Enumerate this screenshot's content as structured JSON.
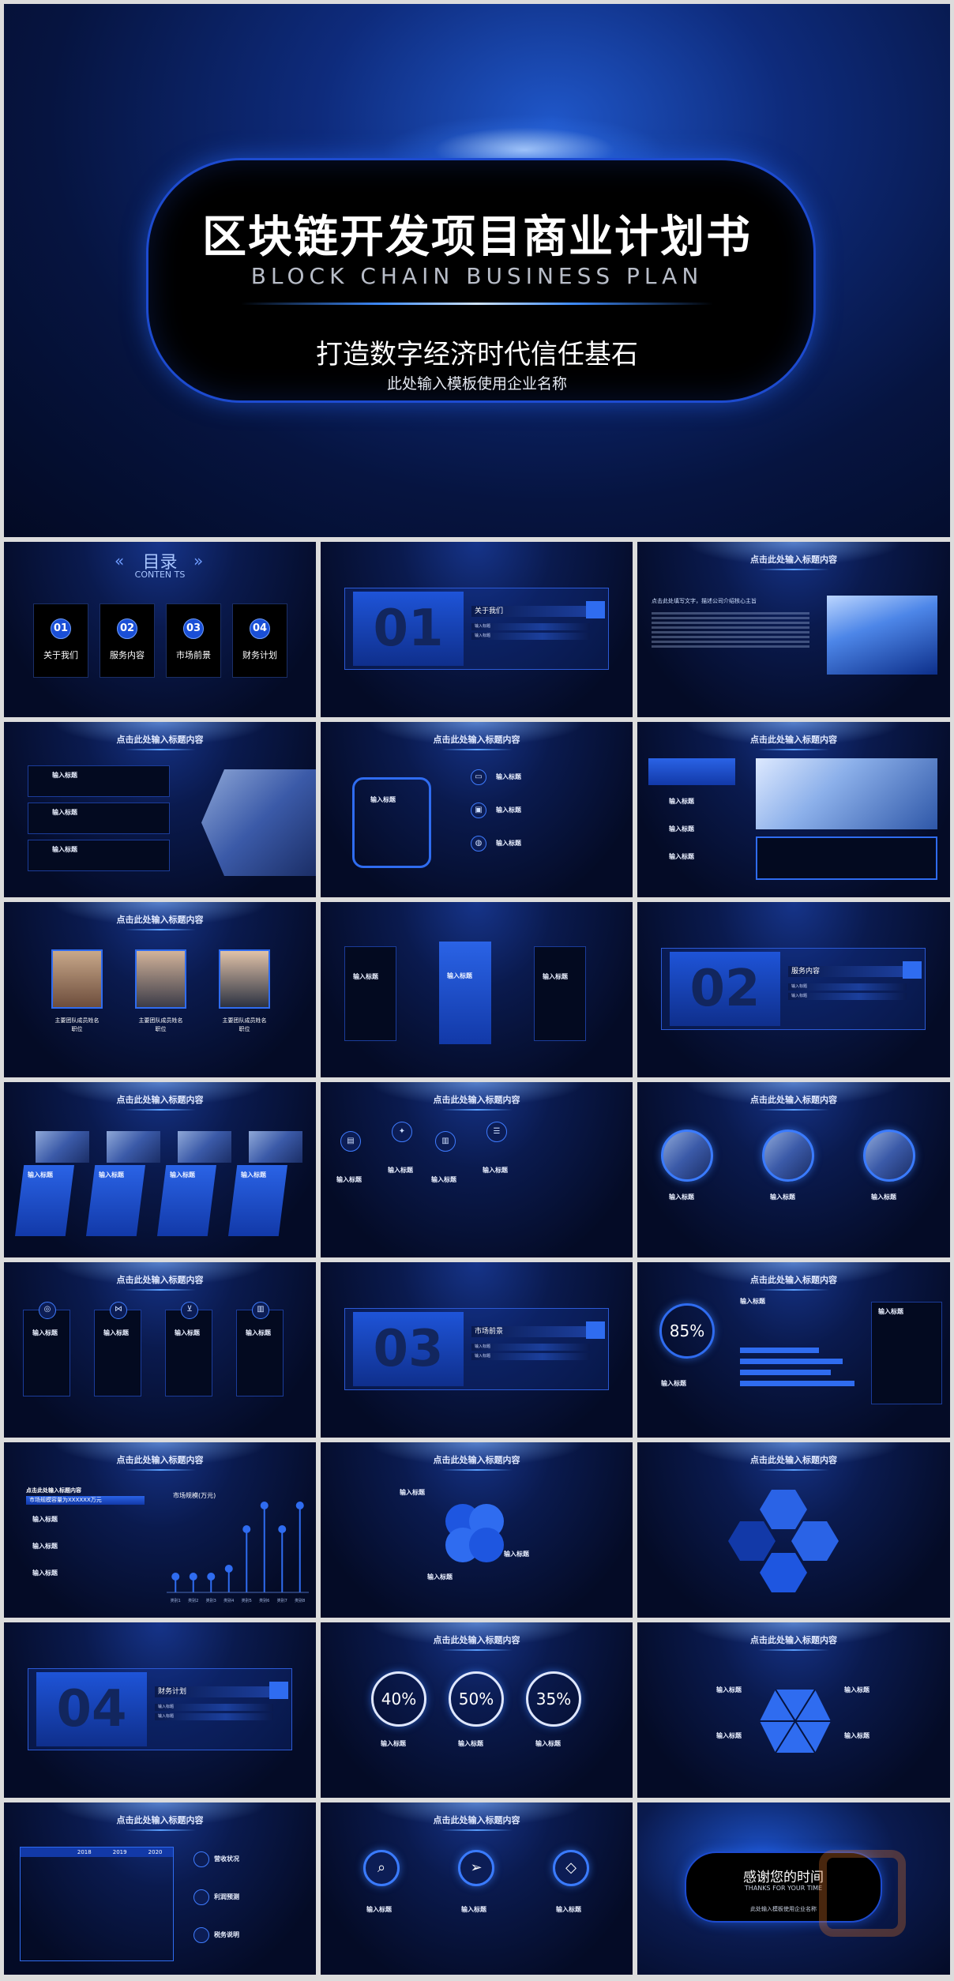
{
  "hero": {
    "title": "区块链开发项目商业计划书",
    "subtitle_en": "BLOCK CHAIN BUSINESS PLAN",
    "tagline": "打造数字经济时代信任基石",
    "company": "此处输入模板使用企业名称"
  },
  "contents": {
    "title": "目录",
    "title_en": "CONTEN TS",
    "items": [
      {
        "num": "01",
        "label": "关于我们"
      },
      {
        "num": "02",
        "label": "服务内容"
      },
      {
        "num": "03",
        "label": "市场前景"
      },
      {
        "num": "04",
        "label": "财务计划"
      }
    ]
  },
  "common": {
    "slide_title": "点击此处输入标题内容",
    "input_title": "输入标题",
    "input_small": "输入标题",
    "body_text": "点击此处输入文字点击此处输入文字点击此处输入文字"
  },
  "sections": [
    {
      "num": "01",
      "label": "关于我们"
    },
    {
      "num": "02",
      "label": "服务内容"
    },
    {
      "num": "03",
      "label": "市场前景"
    },
    {
      "num": "04",
      "label": "财务计划"
    }
  ],
  "section_rows": [
    "输入标题",
    "输入标题",
    "输入标题",
    "输入标题"
  ],
  "about_slide": {
    "heading": "点击此处填写文字，描述公司介绍核心主旨"
  },
  "team": {
    "members": [
      {
        "name": "主要团队成员姓名",
        "role": "职位"
      },
      {
        "name": "主要团队成员姓名",
        "role": "职位"
      },
      {
        "name": "主要团队成员姓名",
        "role": "职位"
      }
    ]
  },
  "percent_slide": {
    "value": "85%"
  },
  "market_slide": {
    "subtitle": "点击此处输入标题内容",
    "highlight": "市场规模容量为XXXXXX万元",
    "chart_title": "市场规模(万元)",
    "categories": [
      "类别1",
      "类别2",
      "类别3",
      "类别4",
      "类别5",
      "类别6",
      "类别7",
      "类别8"
    ]
  },
  "rings": {
    "values": [
      "40%",
      "50%",
      "35%"
    ]
  },
  "table_slide": {
    "headers": [
      "",
      "2018",
      "2019",
      "2020"
    ],
    "side_labels": [
      "营收状况",
      "利润预测",
      "税务说明"
    ]
  },
  "thanks": {
    "title": "感谢您的时间",
    "subtitle": "THANKS FOR YOUR TIME",
    "company": "此处输入模板使用企业名称"
  },
  "colors": {
    "accent": "#2f6cf0",
    "background": "#061440",
    "glow": "#3f8cff"
  },
  "chart_data": {
    "type": "bar",
    "title": "市场规模(万元)",
    "categories": [
      "类别1",
      "类别2",
      "类别3",
      "类别4",
      "类别5",
      "类别6",
      "类别7",
      "类别8"
    ],
    "values": [
      2,
      2,
      2,
      3,
      8,
      11,
      8,
      11
    ]
  }
}
